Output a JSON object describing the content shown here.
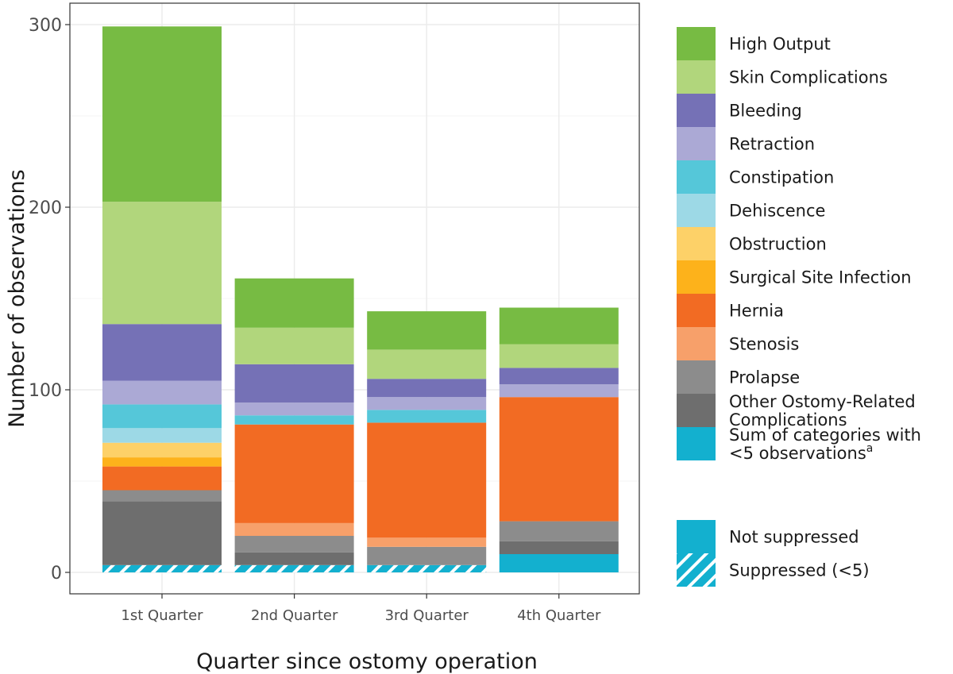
{
  "chart_data": {
    "type": "bar",
    "stacked": true,
    "title": "",
    "xlabel": "Quarter since ostomy operation",
    "ylabel": "Number of observations",
    "ylim": [
      0,
      304
    ],
    "yticks": [
      0,
      100,
      200,
      300
    ],
    "grid": true,
    "legend_position": "right",
    "categories": [
      "1st Quarter",
      "2nd Quarter",
      "3rd Quarter",
      "4th Quarter"
    ],
    "suppressed": [
      true,
      true,
      true,
      false
    ],
    "series": [
      {
        "name": "Sum of categories with <5 observations",
        "superscript": "a",
        "color": "#13B0CF",
        "values": [
          4,
          4,
          4,
          10
        ]
      },
      {
        "name": "Other Ostomy-Related Complications",
        "color": "#6E6E6E",
        "values": [
          35,
          7,
          0,
          7
        ]
      },
      {
        "name": "Prolapse",
        "color": "#8C8C8C",
        "values": [
          6,
          9,
          10,
          11
        ]
      },
      {
        "name": "Stenosis",
        "color": "#F7A06A",
        "values": [
          0,
          7,
          5,
          0
        ]
      },
      {
        "name": "Hernia",
        "color": "#F26B23",
        "values": [
          13,
          54,
          63,
          68
        ]
      },
      {
        "name": "Surgical Site Infection",
        "color": "#FDB21B",
        "values": [
          5,
          0,
          0,
          0
        ]
      },
      {
        "name": "Obstruction",
        "color": "#FDD168",
        "values": [
          8,
          0,
          0,
          0
        ]
      },
      {
        "name": "Dehiscence",
        "color": "#9DD9E6",
        "values": [
          8,
          0,
          0,
          0
        ]
      },
      {
        "name": "Constipation",
        "color": "#55C7D9",
        "values": [
          13,
          5,
          7,
          0
        ]
      },
      {
        "name": "Retraction",
        "color": "#ABA9D5",
        "values": [
          13,
          7,
          7,
          7
        ]
      },
      {
        "name": "Bleeding",
        "color": "#7571B6",
        "values": [
          31,
          21,
          10,
          9
        ]
      },
      {
        "name": "Skin Complications",
        "color": "#B1D67C",
        "values": [
          67,
          20,
          16,
          13
        ]
      },
      {
        "name": "High Output",
        "color": "#77BB43",
        "values": [
          96,
          27,
          21,
          20
        ]
      }
    ],
    "legend_order": [
      "High Output",
      "Skin Complications",
      "Bleeding",
      "Retraction",
      "Constipation",
      "Dehiscence",
      "Obstruction",
      "Surgical Site Infection",
      "Hernia",
      "Stenosis",
      "Prolapse",
      "Other Ostomy-Related Complications",
      "Sum of categories with <5 observations"
    ],
    "legend_labels": {
      "Other Ostomy-Related Complications": [
        "Other Ostomy-Related",
        "Complications"
      ],
      "Sum of categories with <5 observations": [
        "Sum of categories with",
        "<5 observations"
      ]
    },
    "pattern_legend": [
      {
        "label": "Not suppressed",
        "style": "solid"
      },
      {
        "label": "Suppressed (<5)",
        "style": "hatched"
      }
    ]
  }
}
